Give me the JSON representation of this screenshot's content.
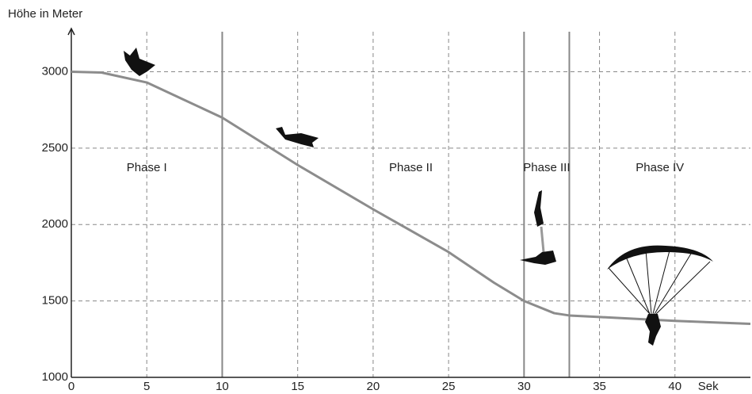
{
  "chart_data": {
    "type": "line",
    "y_label": "Höhe in Meter",
    "x_label": "Sek",
    "x": [
      0,
      2,
      5,
      10,
      15,
      20,
      25,
      28,
      30,
      32,
      33,
      35,
      40,
      45
    ],
    "series": [
      {
        "color": "#8c8c8c",
        "values": [
          3000,
          2995,
          2930,
          2700,
          2390,
          2100,
          1820,
          1620,
          1500,
          1420,
          1405,
          1395,
          1370,
          1350
        ]
      }
    ],
    "xlim": [
      0,
      45
    ],
    "ylim": [
      1000,
      3200
    ],
    "xticks": [
      0,
      5,
      10,
      15,
      20,
      25,
      30,
      35,
      40
    ],
    "yticks": [
      1000,
      1500,
      2000,
      2500,
      3000
    ],
    "grid": true,
    "phase_boundaries": [
      10,
      30,
      33
    ],
    "phases": [
      "Phase I",
      "Phase II",
      "Phase III",
      "Phase IV"
    ]
  }
}
